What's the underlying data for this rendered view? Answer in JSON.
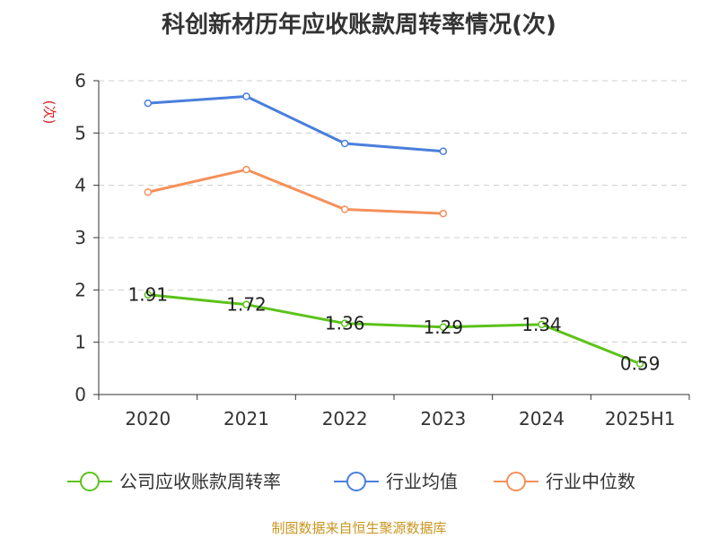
{
  "chart_data": {
    "type": "line",
    "title": "科创新材历年应收账款周转率情况(次)",
    "ylabel": "(次)",
    "xlabel": "",
    "ylim": [
      0,
      6
    ],
    "yticks": [
      "0",
      "1",
      "2",
      "3",
      "4",
      "5",
      "6"
    ],
    "categories": [
      "2020",
      "2021",
      "2022",
      "2023",
      "2024",
      "2025H1"
    ],
    "grid": true,
    "legend_position": "bottom",
    "series": [
      {
        "name": "公司应收账款周转率",
        "color": "#5cc21a",
        "values": [
          1.91,
          1.72,
          1.36,
          1.29,
          1.34,
          0.59
        ],
        "labels": [
          "1.91",
          "1.72",
          "1.36",
          "1.29",
          "1.34",
          "0.59"
        ]
      },
      {
        "name": "行业均值",
        "color": "#4a7fdc",
        "values": [
          5.57,
          5.7,
          4.8,
          4.65,
          null,
          null
        ]
      },
      {
        "name": "行业中位数",
        "color": "#f5905a",
        "values": [
          3.87,
          4.3,
          3.54,
          3.46,
          null,
          null
        ]
      }
    ]
  },
  "source": "制图数据来自恒生聚源数据库"
}
